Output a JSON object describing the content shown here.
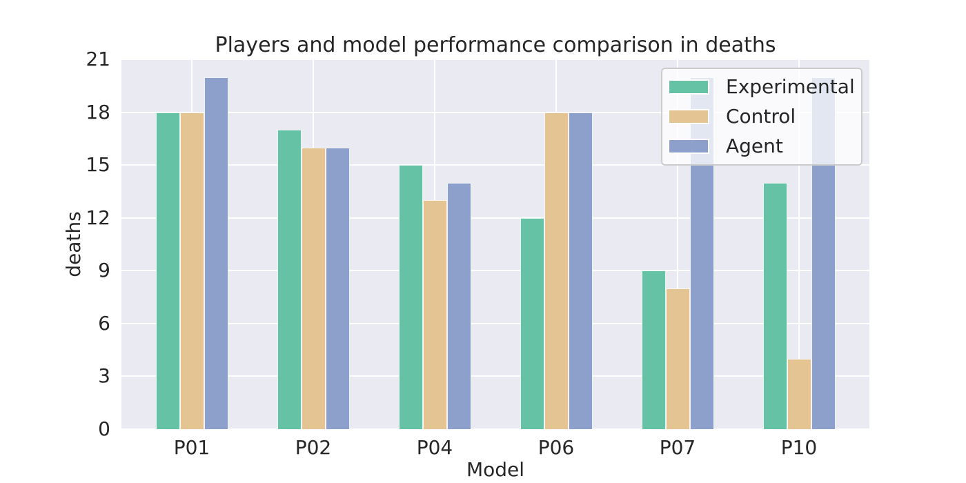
{
  "chart_data": {
    "type": "bar",
    "title": "Players and model performance comparison in deaths",
    "xlabel": "Model",
    "ylabel": "deaths",
    "categories": [
      "P01",
      "P02",
      "P04",
      "P06",
      "P07",
      "P10"
    ],
    "series": [
      {
        "name": "Experimental",
        "color": "#66c2a5",
        "values": [
          18,
          17,
          15,
          12,
          9,
          14
        ]
      },
      {
        "name": "Control",
        "color": "#e5c494",
        "values": [
          18,
          16,
          13,
          18,
          8,
          4
        ]
      },
      {
        "name": "Agent",
        "color": "#8da0cb",
        "values": [
          20,
          16,
          14,
          18,
          20,
          20
        ]
      }
    ],
    "yticks": [
      0,
      3,
      6,
      9,
      12,
      15,
      18,
      21
    ],
    "ylim": [
      0,
      21
    ],
    "legend_position": "upper right",
    "grid": true,
    "plot_background": "#eaeaf2",
    "gridline_color": "#ffffff",
    "text_color": "#262626"
  }
}
